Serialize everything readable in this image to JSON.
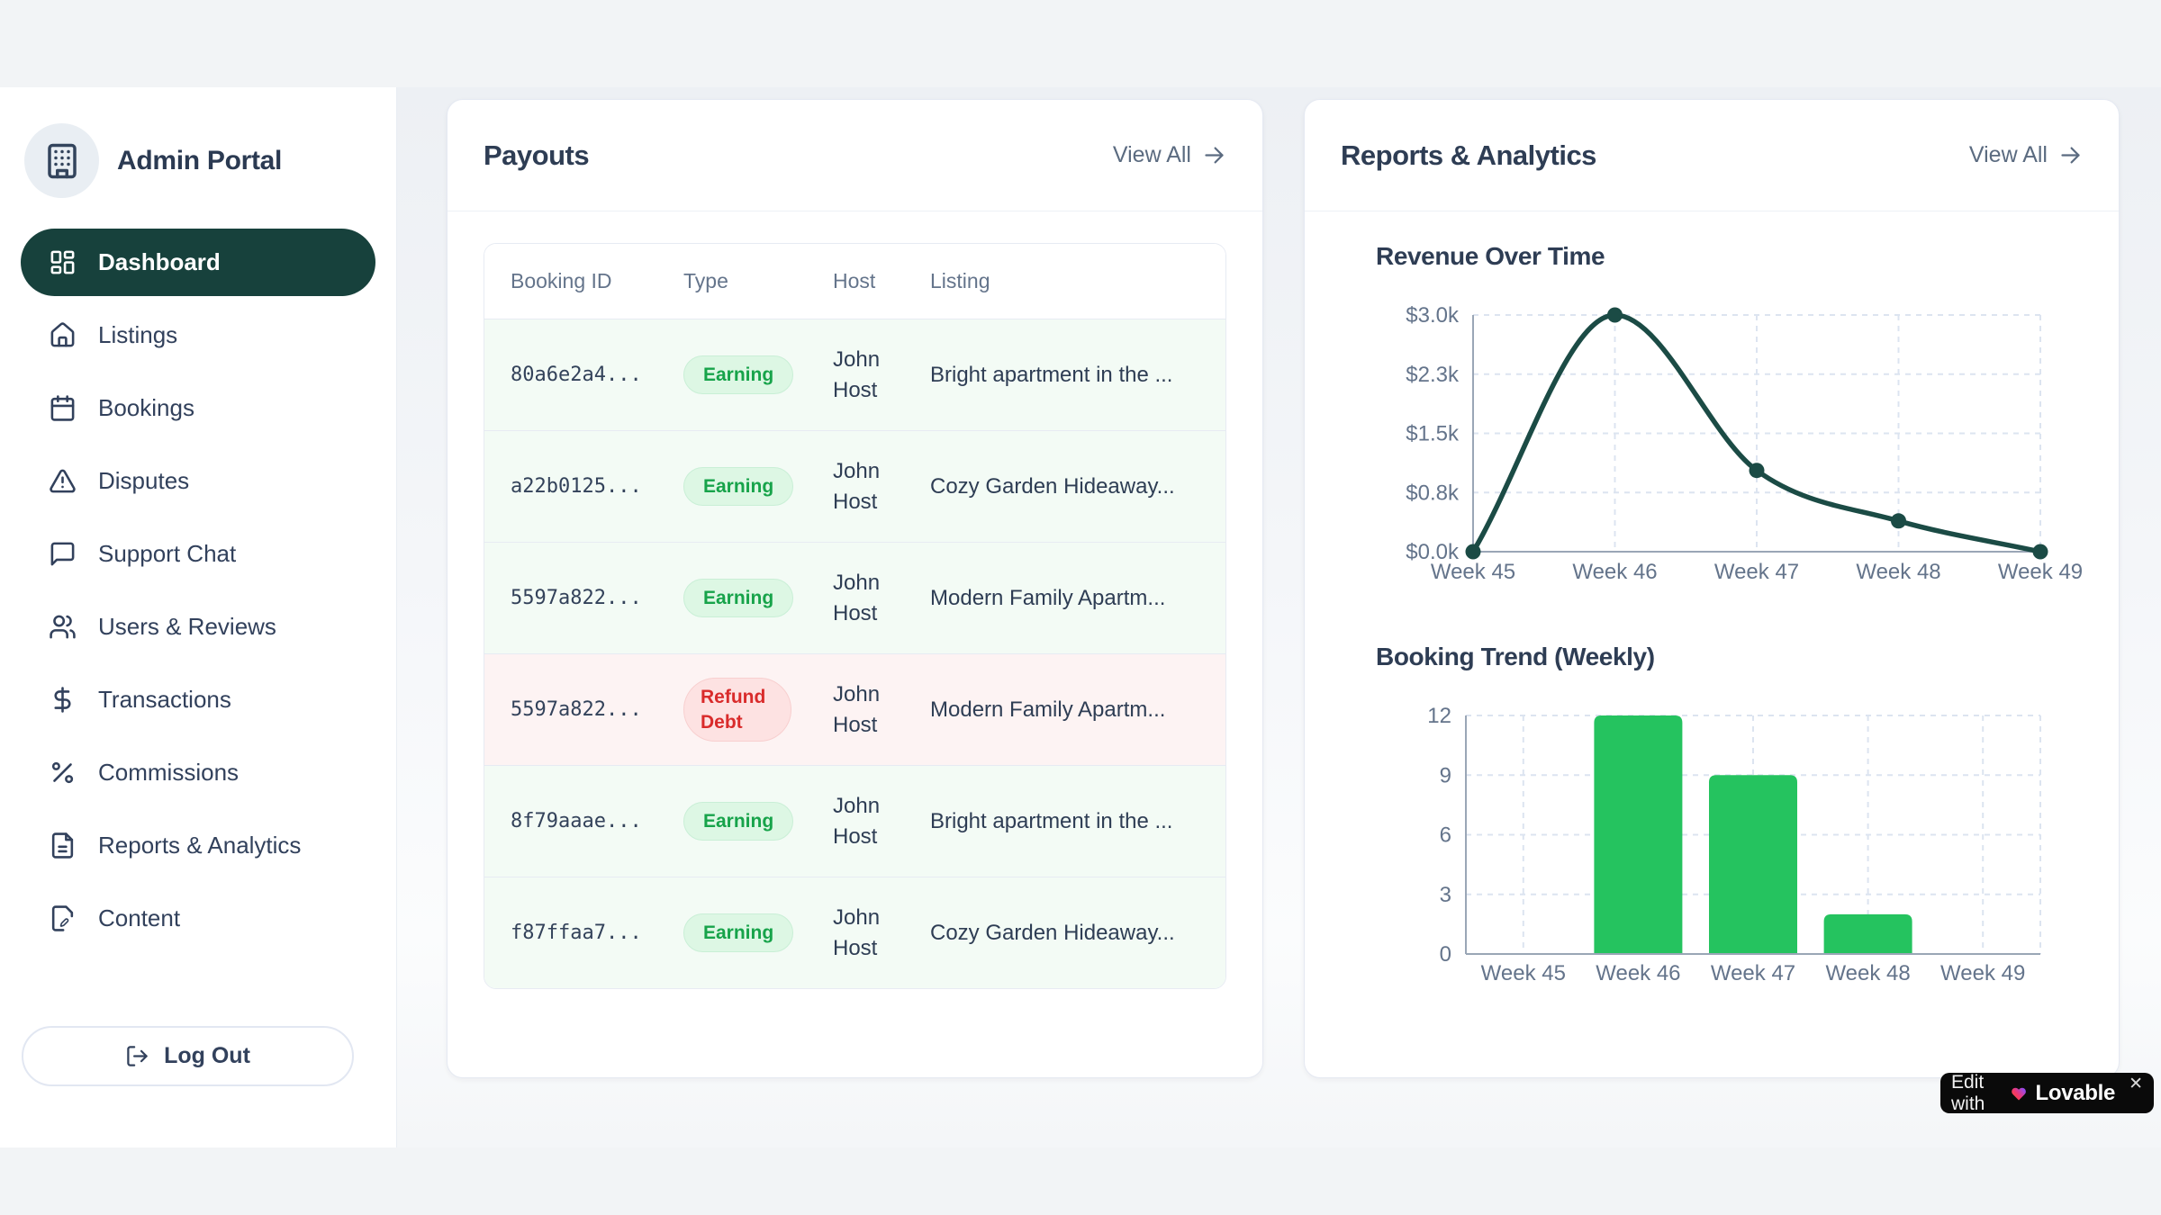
{
  "sidebar": {
    "title": "Admin Portal",
    "items": [
      {
        "label": "Dashboard",
        "icon": "dashboard-icon",
        "active": true
      },
      {
        "label": "Listings",
        "icon": "home-icon",
        "active": false
      },
      {
        "label": "Bookings",
        "icon": "calendar-icon",
        "active": false
      },
      {
        "label": "Disputes",
        "icon": "alert-triangle-icon",
        "active": false
      },
      {
        "label": "Support Chat",
        "icon": "message-square-icon",
        "active": false
      },
      {
        "label": "Users & Reviews",
        "icon": "users-icon",
        "active": false
      },
      {
        "label": "Transactions",
        "icon": "dollar-sign-icon",
        "active": false
      },
      {
        "label": "Commissions",
        "icon": "percent-icon",
        "active": false
      },
      {
        "label": "Reports & Analytics",
        "icon": "file-text-icon",
        "active": false
      },
      {
        "label": "Content",
        "icon": "file-pen-icon",
        "active": false
      }
    ],
    "logout_label": "Log Out"
  },
  "payouts": {
    "title": "Payouts",
    "view_all": "View All",
    "table": {
      "headers": [
        "Booking ID",
        "Type",
        "Host",
        "Listing"
      ],
      "rows": [
        {
          "booking_id": "80a6e2a4...",
          "type": "Earning",
          "variant": "earning",
          "host": "John Host",
          "listing": "Bright apartment in the ..."
        },
        {
          "booking_id": "a22b0125...",
          "type": "Earning",
          "variant": "earning",
          "host": "John Host",
          "listing": "Cozy Garden Hideaway..."
        },
        {
          "booking_id": "5597a822...",
          "type": "Earning",
          "variant": "earning",
          "host": "John Host",
          "listing": "Modern Family Apartm..."
        },
        {
          "booking_id": "5597a822...",
          "type": "Refund Debt",
          "variant": "refund",
          "host": "John Host",
          "listing": "Modern Family Apartm..."
        },
        {
          "booking_id": "8f79aaae...",
          "type": "Earning",
          "variant": "earning",
          "host": "John Host",
          "listing": "Bright apartment in the ..."
        },
        {
          "booking_id": "f87ffaa7...",
          "type": "Earning",
          "variant": "earning",
          "host": "John Host",
          "listing": "Cozy Garden Hideaway..."
        }
      ]
    }
  },
  "reports": {
    "title": "Reports & Analytics",
    "view_all": "View All"
  },
  "chart_data": [
    {
      "type": "line",
      "title": "Revenue Over Time",
      "x": [
        "Week 45",
        "Week 46",
        "Week 47",
        "Week 48",
        "Week 49"
      ],
      "values": [
        0,
        3000,
        1030,
        390,
        0
      ],
      "y_ticks": [
        0,
        750,
        1500,
        2250,
        3000
      ],
      "y_tick_labels": [
        "$0.0k",
        "$0.8k",
        "$1.5k",
        "$2.3k",
        "$3.0k"
      ],
      "ylim": [
        0,
        3000
      ],
      "grid": true,
      "legend": false,
      "line_color": "#1b4b45"
    },
    {
      "type": "bar",
      "title": "Booking Trend (Weekly)",
      "categories": [
        "Week 45",
        "Week 46",
        "Week 47",
        "Week 48",
        "Week 49"
      ],
      "values": [
        0,
        12,
        9,
        2,
        0
      ],
      "y_ticks": [
        0,
        3,
        6,
        9,
        12
      ],
      "y_tick_labels": [
        "0",
        "3",
        "6",
        "9",
        "12"
      ],
      "ylim": [
        0,
        12
      ],
      "grid": true,
      "legend": false,
      "bar_color": "#25c35f"
    }
  ],
  "lovable_badge": {
    "prefix": "Edit with",
    "brand": "Lovable",
    "close": "✕"
  },
  "colors": {
    "active_nav": "#17413c",
    "line": "#1b4b45",
    "bar": "#25c35f",
    "earning_badge_bg": "#ddf7e4",
    "earning_badge_text": "#17a34a",
    "refund_badge_bg": "#fde2e2",
    "refund_badge_text": "#d92b2b"
  }
}
